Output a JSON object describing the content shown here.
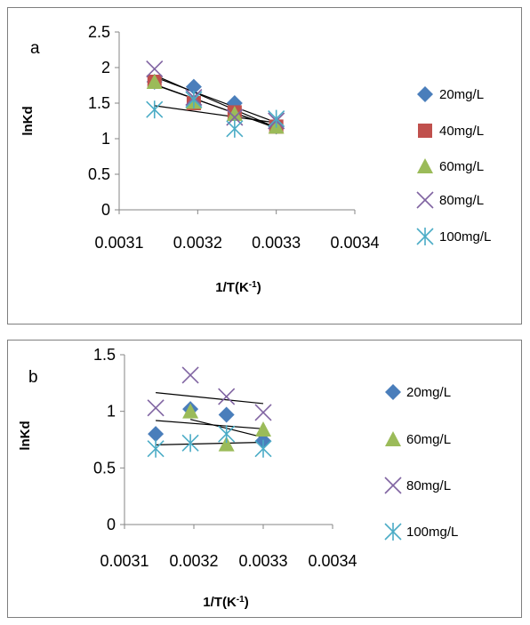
{
  "chart_data": [
    {
      "type": "scatter",
      "panel_label": "a",
      "xlabel": "1/T(K",
      "xlabel_sup": "-1",
      "xlabel_close": ")",
      "ylabel": "lnKd",
      "xlim": [
        0.0031,
        0.0034
      ],
      "ylim": [
        0,
        2.5
      ],
      "x_ticks": [
        0.0031,
        0.0032,
        0.0033,
        0.0034
      ],
      "x_tick_labels": [
        "0.0031",
        "0.0032",
        "0.0033",
        "0.0034"
      ],
      "y_ticks": [
        0,
        0.5,
        1,
        1.5,
        2,
        2.5
      ],
      "y_tick_labels": [
        "0",
        "0.5",
        "1",
        "1.5",
        "2",
        "2.5"
      ],
      "grid": false,
      "legend_position": "right",
      "series": [
        {
          "name": "20mg/L",
          "color": "#4a7ebb",
          "marker": "diamond",
          "x": [
            0.003145,
            0.003195,
            0.003247,
            0.0033
          ],
          "y": [
            1.8,
            1.73,
            1.5,
            1.17
          ],
          "trendline": true
        },
        {
          "name": "40mg/L",
          "color": "#c0504d",
          "marker": "square",
          "x": [
            0.003145,
            0.003195,
            0.003247,
            0.0033
          ],
          "y": [
            1.8,
            1.5,
            1.37,
            1.17
          ],
          "trendline": true
        },
        {
          "name": "60mg/L",
          "color": "#9bbb59",
          "marker": "triangle",
          "x": [
            0.003145,
            0.003195,
            0.003247,
            0.0033
          ],
          "y": [
            1.8,
            1.52,
            1.35,
            1.17
          ],
          "trendline": true
        },
        {
          "name": "80mg/L",
          "color": "#8064a2",
          "marker": "x",
          "x": [
            0.003145,
            0.003195,
            0.003247,
            0.0033
          ],
          "y": [
            1.98,
            1.58,
            1.3,
            1.25
          ],
          "trendline": true
        },
        {
          "name": "100mg/L",
          "color": "#4bacc6",
          "marker": "asterisk",
          "x": [
            0.003145,
            0.003195,
            0.003247,
            0.0033
          ],
          "y": [
            1.41,
            1.55,
            1.14,
            1.28
          ],
          "trendline": true
        }
      ]
    },
    {
      "type": "scatter",
      "panel_label": "b",
      "xlabel": "1/T(K",
      "xlabel_sup": "-1",
      "xlabel_close": ")",
      "ylabel": "lnKd",
      "xlim": [
        0.0031,
        0.0034
      ],
      "ylim": [
        0,
        1.5
      ],
      "x_ticks": [
        0.0031,
        0.0032,
        0.0033,
        0.0034
      ],
      "x_tick_labels": [
        "0.0031",
        "0.0032",
        "0.0033",
        "0.0034"
      ],
      "y_ticks": [
        0,
        0.5,
        1,
        1.5
      ],
      "y_tick_labels": [
        "0",
        "0.5",
        "1",
        "1.5"
      ],
      "grid": false,
      "legend_position": "right",
      "series": [
        {
          "name": "20mg/L",
          "color": "#4a7ebb",
          "marker": "diamond",
          "x": [
            0.003145,
            0.003195,
            0.003247,
            0.0033
          ],
          "y": [
            0.8,
            1.02,
            0.97,
            0.74
          ],
          "trendline": true
        },
        {
          "name": "60mg/L",
          "color": "#9bbb59",
          "marker": "triangle",
          "x": [
            0.003195,
            0.003247,
            0.0033
          ],
          "y": [
            1.0,
            0.71,
            0.84
          ],
          "trendline": true
        },
        {
          "name": "80mg/L",
          "color": "#8064a2",
          "marker": "x",
          "x": [
            0.003145,
            0.003195,
            0.003247,
            0.0033
          ],
          "y": [
            1.03,
            1.32,
            1.13,
            0.99
          ],
          "trendline": true
        },
        {
          "name": "100mg/L",
          "color": "#4bacc6",
          "marker": "asterisk",
          "x": [
            0.003145,
            0.003195,
            0.003247,
            0.0033
          ],
          "y": [
            0.67,
            0.72,
            0.8,
            0.67
          ],
          "trendline": true
        }
      ]
    }
  ]
}
